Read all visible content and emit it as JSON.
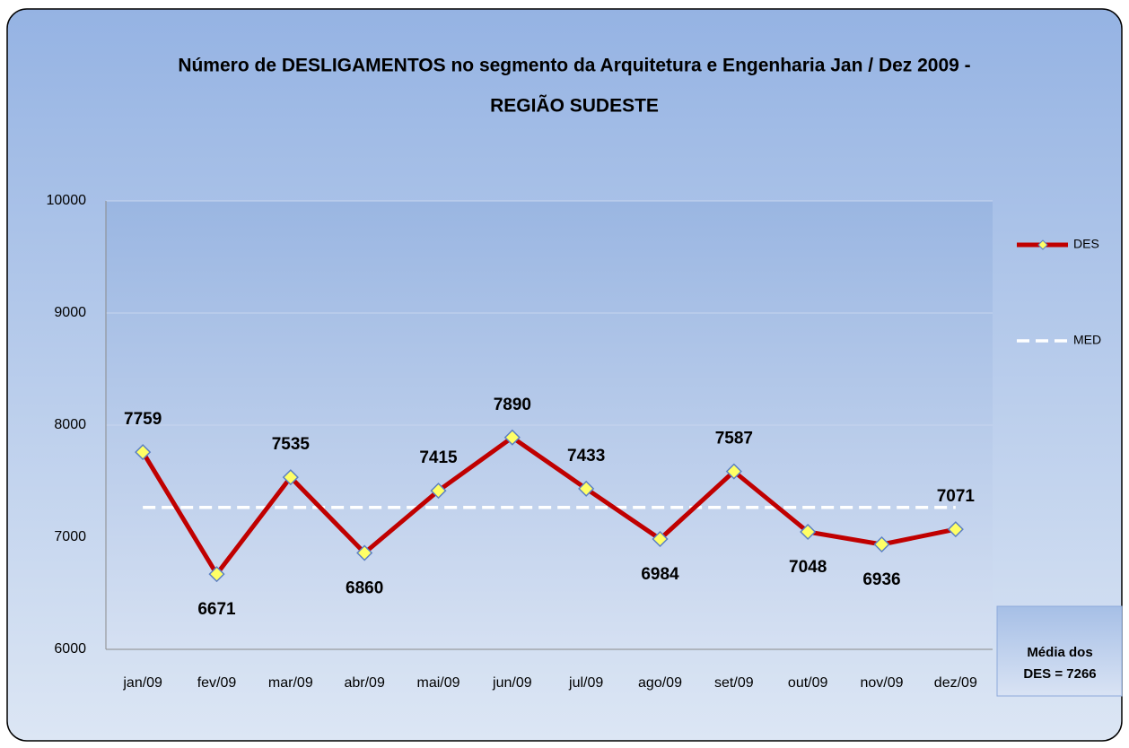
{
  "chart_data": {
    "type": "line",
    "title": [
      "Número de DESLIGAMENTOS no segmento da Arquitetura e Engenharia Jan /  Dez  2009 -",
      "REGIÃO SUDESTE"
    ],
    "categories": [
      "jan/09",
      "fev/09",
      "mar/09",
      "abr/09",
      "mai/09",
      "jun/09",
      "jul/09",
      "ago/09",
      "set/09",
      "out/09",
      "nov/09",
      "dez/09"
    ],
    "series": [
      {
        "name": "DES",
        "color": "#c00000",
        "values": [
          7759,
          6671,
          7535,
          6860,
          7415,
          7890,
          7433,
          6984,
          7587,
          7048,
          6936,
          7071
        ]
      },
      {
        "name": "MED",
        "color": "#ffffff",
        "values": [
          7266,
          7266,
          7266,
          7266,
          7266,
          7266,
          7266,
          7266,
          7266,
          7266,
          7266,
          7266
        ]
      }
    ],
    "ylim": [
      6000,
      10000
    ],
    "yticks": [
      6000,
      7000,
      8000,
      9000,
      10000
    ],
    "grid": true,
    "legend": "right",
    "annotation": [
      "Média dos",
      "DES = 7266"
    ]
  }
}
